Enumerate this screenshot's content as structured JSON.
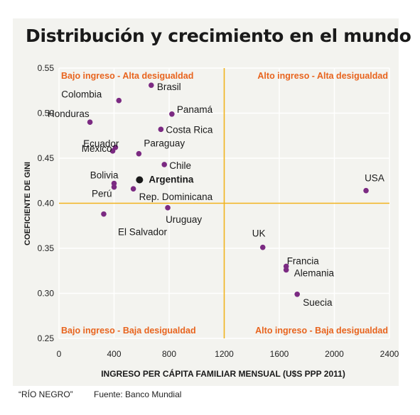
{
  "title": "Distribución y crecimiento en el mundo",
  "footer": {
    "credit": "“RÍO NEGRO”",
    "source": "Fuente: Banco Mundial"
  },
  "quadrant_labels": {
    "top_left": "Bajo ingreso - Alta desigualdad",
    "top_right": "Alto ingreso - Alta desigualdad",
    "bottom_left": "Bajo ingreso - Baja desigualdad",
    "bottom_right": "Alto ingreso - Baja desigualdad"
  },
  "colors": {
    "point": "#7b2a82",
    "highlight": "#1a1a1a",
    "divider": "#f0b21c",
    "quadrant_text": "#e8641e",
    "grid": "#ffffff"
  },
  "chart_data": {
    "type": "scatter",
    "xlabel": "INGRESO PER CÁPITA FAMILIAR MENSUAL (U$S PPP 2011)",
    "ylabel": "COEFICIENTE DE GINI",
    "xlim": [
      0,
      2400
    ],
    "ylim": [
      0.25,
      0.55
    ],
    "xticks": [
      0,
      400,
      800,
      1200,
      1600,
      2000,
      2400
    ],
    "xtick_labels": [
      "0",
      "400",
      "800",
      "1200",
      "1600",
      "2000",
      "2400"
    ],
    "yticks": [
      0.25,
      0.3,
      0.35,
      0.4,
      0.45,
      0.5,
      0.55
    ],
    "ytick_labels": [
      "0.25",
      "0.30",
      "0.35",
      "0.40",
      "0.45",
      "0.50",
      "0.55"
    ],
    "grid": true,
    "dividers": {
      "x": 1200,
      "y": 0.4
    },
    "points": [
      {
        "label": "Brasil",
        "x": 670,
        "y": 0.531
      },
      {
        "label": "Colombia",
        "x": 435,
        "y": 0.514
      },
      {
        "label": "Honduras",
        "x": 225,
        "y": 0.49
      },
      {
        "label": "Panamá",
        "x": 820,
        "y": 0.499
      },
      {
        "label": "Costa Rica",
        "x": 740,
        "y": 0.482
      },
      {
        "label": "Ecuador",
        "x": 410,
        "y": 0.462
      },
      {
        "label": "México",
        "x": 390,
        "y": 0.458
      },
      {
        "label": "Paraguay",
        "x": 580,
        "y": 0.455
      },
      {
        "label": "Chile",
        "x": 765,
        "y": 0.443
      },
      {
        "label": "Bolivia",
        "x": 400,
        "y": 0.422
      },
      {
        "label": "Argentina",
        "x": 585,
        "y": 0.426,
        "highlight": true
      },
      {
        "label": "Perú",
        "x": 400,
        "y": 0.418
      },
      {
        "label": "Rep. Dominicana",
        "x": 540,
        "y": 0.416
      },
      {
        "label": "USA",
        "x": 2230,
        "y": 0.414
      },
      {
        "label": "Uruguay",
        "x": 790,
        "y": 0.395
      },
      {
        "label": "El Salvador",
        "x": 325,
        "y": 0.388
      },
      {
        "label": "UK",
        "x": 1480,
        "y": 0.351
      },
      {
        "label": "Francia",
        "x": 1650,
        "y": 0.33
      },
      {
        "label": "Alemania",
        "x": 1650,
        "y": 0.326
      },
      {
        "label": "Suecia",
        "x": 1730,
        "y": 0.299
      }
    ]
  }
}
